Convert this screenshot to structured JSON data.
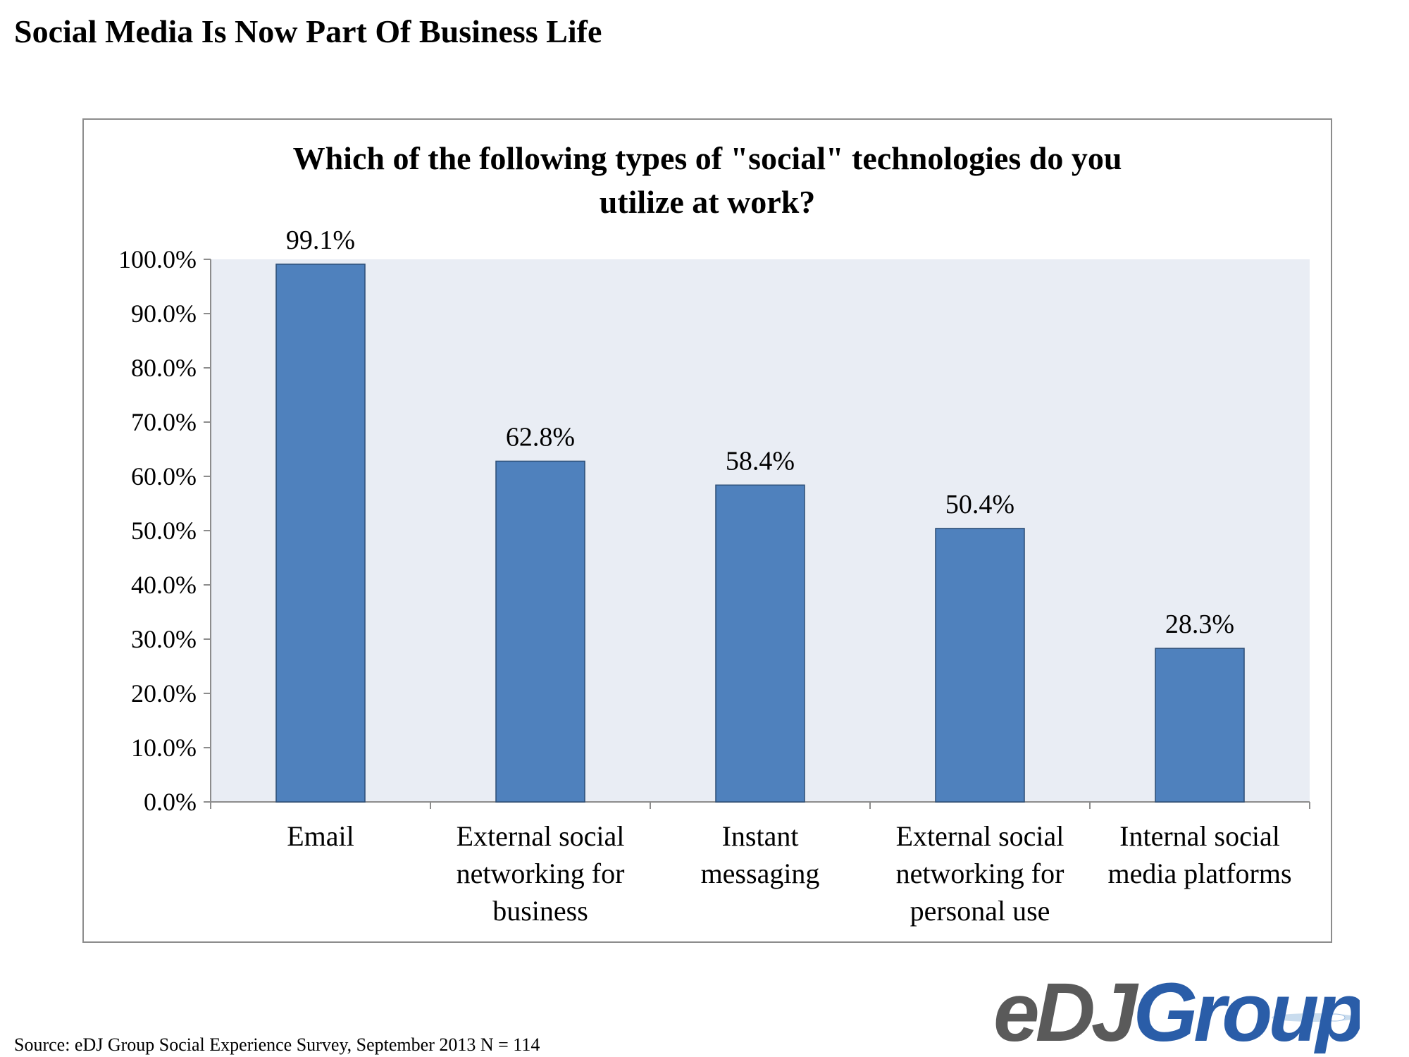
{
  "page": {
    "title": "Social Media Is Now Part Of Business Life",
    "source": "Source: eDJ Group Social Experience Survey, September 2013  N = 114",
    "logo_text": "eDJGroup"
  },
  "colors": {
    "bar": "#4f81bd",
    "bar_border": "#2c4d75",
    "plot_background": "#e9edf4",
    "axis": "#8c8c8c",
    "logo_gray": "#5a5a5a",
    "logo_blue": "#2a5da8"
  },
  "chart_data": {
    "type": "bar",
    "title_lines": [
      "Which of the following types of \"social\" technologies do you",
      "utilize at work?"
    ],
    "categories": [
      [
        "Email"
      ],
      [
        "External social",
        "networking for",
        "business"
      ],
      [
        "Instant",
        "messaging"
      ],
      [
        "External social",
        "networking for",
        "personal use"
      ],
      [
        "Internal social",
        "media platforms"
      ]
    ],
    "values": [
      99.1,
      62.8,
      58.4,
      50.4,
      28.3
    ],
    "data_labels": [
      "99.1%",
      "62.8%",
      "58.4%",
      "50.4%",
      "28.3%"
    ],
    "ylim": [
      0,
      100
    ],
    "yticks": [
      0,
      10,
      20,
      30,
      40,
      50,
      60,
      70,
      80,
      90,
      100
    ],
    "ytick_labels": [
      "0.0%",
      "10.0%",
      "20.0%",
      "30.0%",
      "40.0%",
      "50.0%",
      "60.0%",
      "70.0%",
      "80.0%",
      "90.0%",
      "100.0%"
    ],
    "grid": false,
    "legend": "none",
    "xlabel": "",
    "ylabel": ""
  }
}
